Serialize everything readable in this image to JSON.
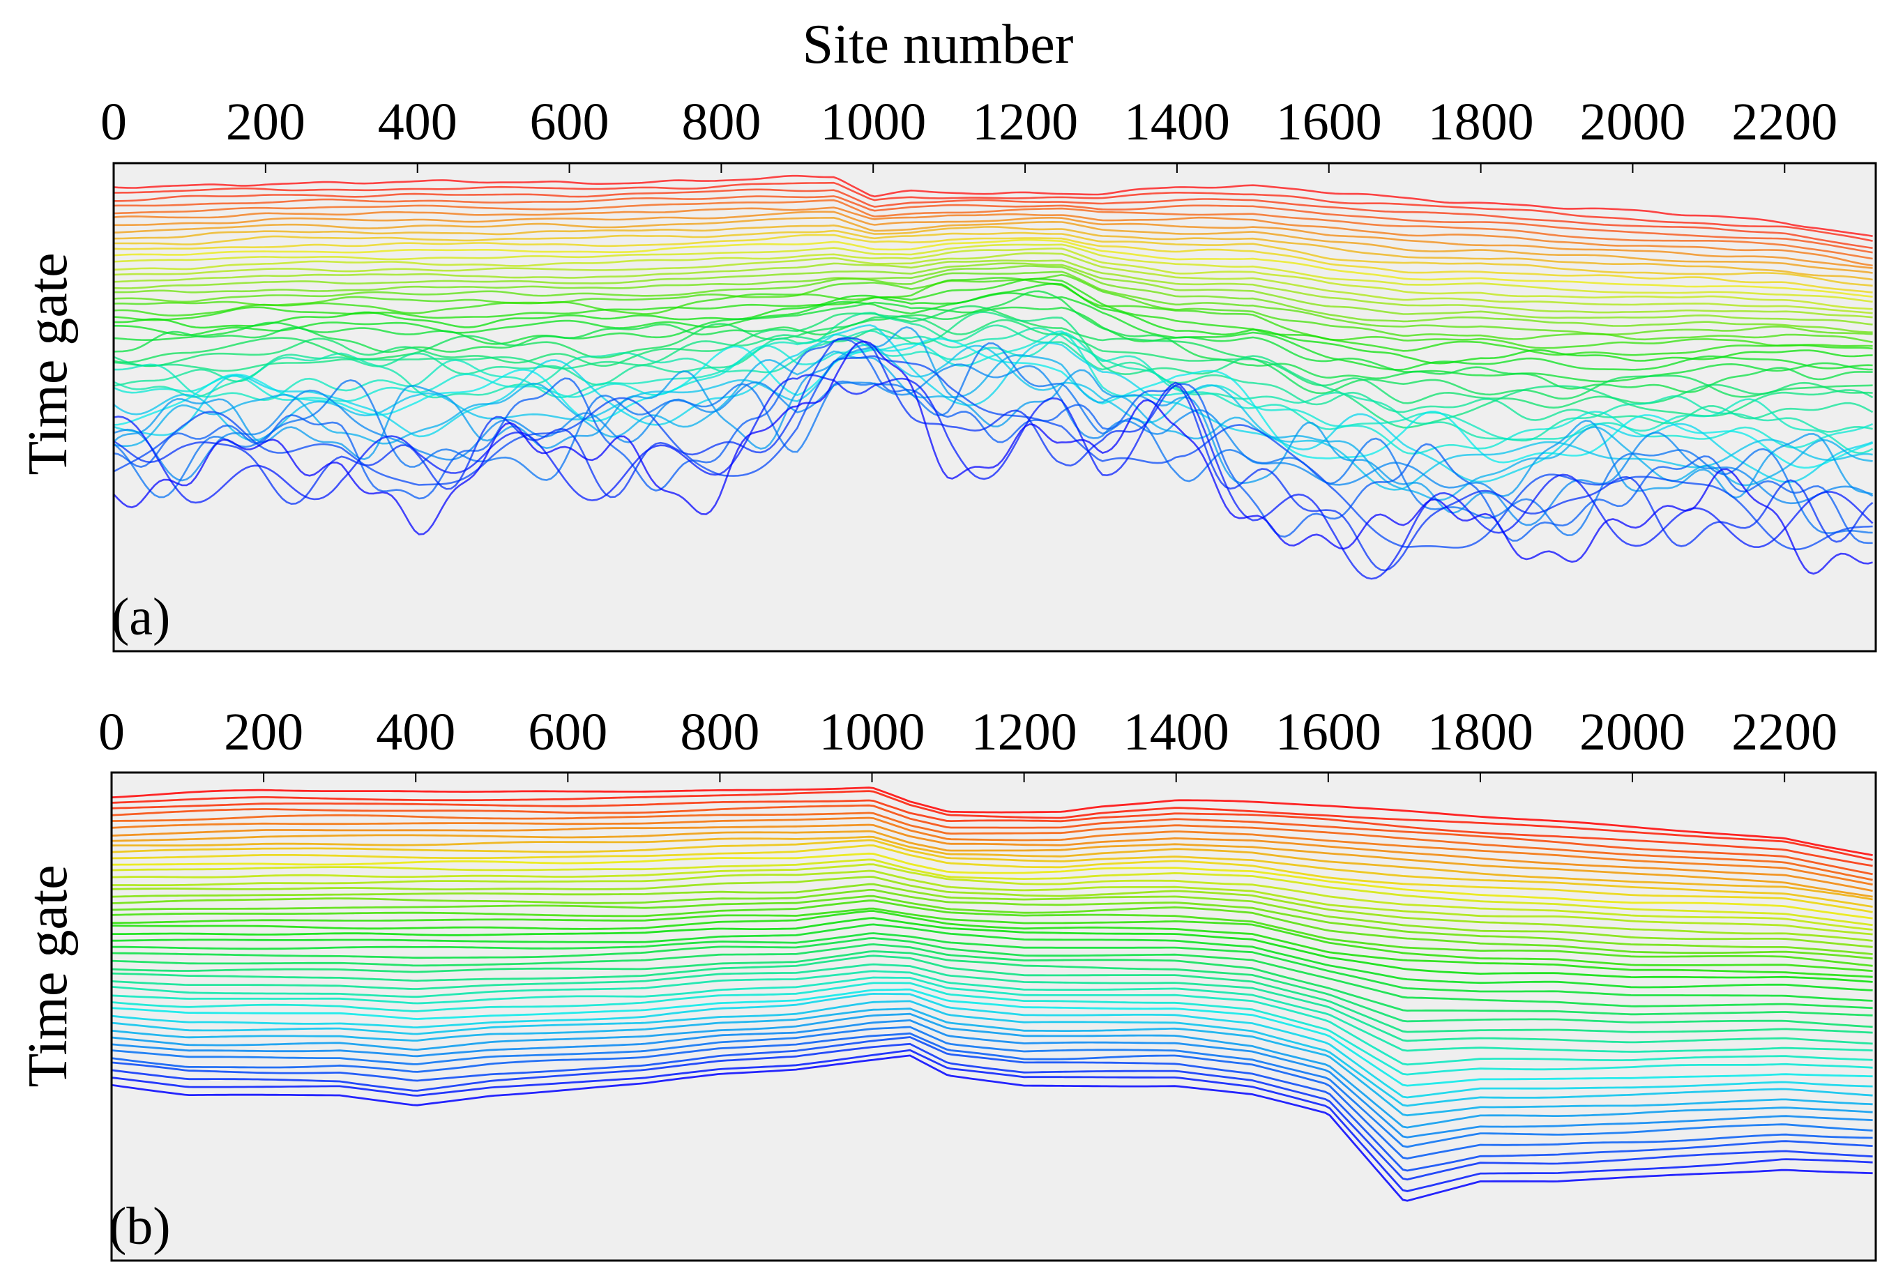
{
  "figure": {
    "top_axis_title": "Site number"
  },
  "chart_data": [
    {
      "type": "line",
      "panel_label": "(a)",
      "xlabel": "Site number",
      "ylabel": "Time gate",
      "xlim": [
        0,
        2320
      ],
      "xticks": [
        0,
        200,
        400,
        600,
        800,
        1000,
        1200,
        1400,
        1600,
        1800,
        2000,
        2200
      ],
      "xtick_labels": [
        "0",
        "200",
        "400",
        "600",
        "800",
        "1000",
        "1200",
        "1400",
        "1600",
        "1800",
        "2000",
        "2200"
      ],
      "ytick_labels": [],
      "grid": false,
      "background": "#efefef",
      "color_scale": "rainbow: red (early gate) to blue (late gate)",
      "series_count": 45,
      "series_style": "noisy: strong oscillations in lower (later) time gates",
      "x": [
        0,
        100,
        200,
        300,
        400,
        500,
        600,
        700,
        800,
        900,
        950,
        1000,
        1050,
        1100,
        1200,
        1250,
        1300,
        1400,
        1500,
        1600,
        1700,
        1800,
        1900,
        2000,
        2100,
        2200,
        2320
      ],
      "series": [
        {
          "gate": 1,
          "values": [
            0.05,
            0.045,
            0.04,
            0.04,
            0.04,
            0.04,
            0.04,
            0.037,
            0.033,
            0.03,
            0.03,
            0.07,
            0.06,
            0.06,
            0.06,
            0.06,
            0.06,
            0.05,
            0.05,
            0.06,
            0.07,
            0.08,
            0.09,
            0.1,
            0.11,
            0.12,
            0.15
          ]
        },
        {
          "gate": 23,
          "values": [
            0.33,
            0.33,
            0.32,
            0.32,
            0.32,
            0.32,
            0.32,
            0.32,
            0.31,
            0.3,
            0.29,
            0.28,
            0.29,
            0.27,
            0.26,
            0.26,
            0.3,
            0.34,
            0.34,
            0.38,
            0.4,
            0.39,
            0.4,
            0.4,
            0.39,
            0.39,
            0.4
          ]
        },
        {
          "gate": 45,
          "values": [
            0.62,
            0.65,
            0.64,
            0.62,
            0.66,
            0.63,
            0.62,
            0.61,
            0.6,
            0.55,
            0.45,
            0.44,
            0.5,
            0.55,
            0.55,
            0.55,
            0.62,
            0.57,
            0.68,
            0.75,
            0.78,
            0.76,
            0.74,
            0.72,
            0.73,
            0.75,
            0.78
          ]
        }
      ]
    },
    {
      "type": "line",
      "panel_label": "(b)",
      "ylabel": "Time gate",
      "xlim": [
        0,
        2320
      ],
      "xticks": [
        0,
        200,
        400,
        600,
        800,
        1000,
        1200,
        1400,
        1600,
        1800,
        2000,
        2200
      ],
      "xtick_labels": [
        "0",
        "200",
        "400",
        "600",
        "800",
        "1000",
        "1200",
        "1400",
        "1600",
        "1800",
        "2000",
        "2200"
      ],
      "ytick_labels": [],
      "grid": false,
      "background": "#efefef",
      "color_scale": "rainbow: red (early gate) to blue (late gate)",
      "series_count": 45,
      "series_style": "smooth",
      "x": [
        0,
        100,
        200,
        300,
        400,
        500,
        600,
        700,
        800,
        900,
        950,
        1000,
        1050,
        1100,
        1200,
        1250,
        1300,
        1400,
        1500,
        1600,
        1700,
        1800,
        1900,
        2000,
        2100,
        2200,
        2320
      ],
      "series": [
        {
          "gate": 1,
          "values": [
            0.05,
            0.045,
            0.04,
            0.04,
            0.04,
            0.04,
            0.04,
            0.037,
            0.033,
            0.03,
            0.03,
            0.03,
            0.06,
            0.08,
            0.08,
            0.08,
            0.07,
            0.06,
            0.065,
            0.07,
            0.08,
            0.09,
            0.1,
            0.11,
            0.12,
            0.13,
            0.17
          ]
        },
        {
          "gate": 23,
          "values": [
            0.33,
            0.33,
            0.33,
            0.33,
            0.33,
            0.33,
            0.33,
            0.33,
            0.32,
            0.32,
            0.31,
            0.3,
            0.31,
            0.32,
            0.33,
            0.33,
            0.33,
            0.33,
            0.34,
            0.38,
            0.4,
            0.41,
            0.41,
            0.42,
            0.42,
            0.42,
            0.43
          ]
        },
        {
          "gate": 45,
          "values": [
            0.64,
            0.66,
            0.66,
            0.66,
            0.68,
            0.66,
            0.65,
            0.64,
            0.62,
            0.61,
            0.6,
            0.59,
            0.58,
            0.62,
            0.64,
            0.64,
            0.64,
            0.64,
            0.66,
            0.7,
            0.88,
            0.84,
            0.84,
            0.83,
            0.82,
            0.81,
            0.82
          ]
        }
      ]
    }
  ]
}
